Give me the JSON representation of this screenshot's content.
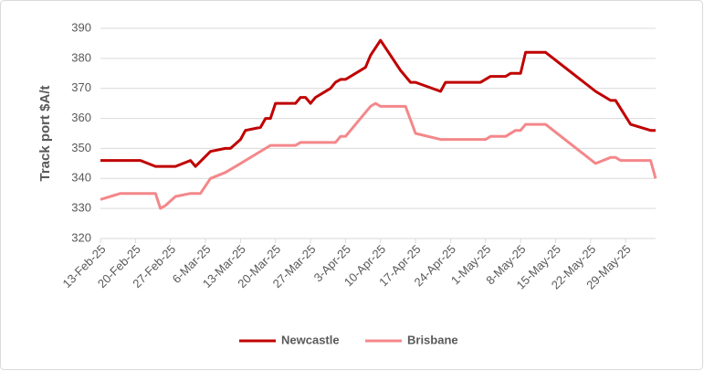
{
  "chart_data": {
    "type": "line",
    "y_label": "Track port $A/t",
    "ylim": [
      320,
      390
    ],
    "yticks": [
      320,
      330,
      340,
      350,
      360,
      370,
      380,
      390
    ],
    "xlim": [
      "13-Feb-25",
      "4-Jun-25"
    ],
    "xticks": [
      "13-Feb-25",
      "20-Feb-25",
      "27-Feb-25",
      "6-Mar-25",
      "13-Mar-25",
      "20-Mar-25",
      "27-Mar-25",
      "3-Apr-25",
      "10-Apr-25",
      "17-Apr-25",
      "24-Apr-25",
      "1-May-25",
      "8-May-25",
      "15-May-25",
      "22-May-25",
      "29-May-25"
    ],
    "grid": true,
    "legend": "bottom",
    "series": [
      {
        "name": "Newcastle",
        "color": "#c00000",
        "x": [
          "13-Feb-25",
          "21-Feb-25",
          "24-Feb-25",
          "28-Feb-25",
          "3-Mar-25",
          "4-Mar-25",
          "7-Mar-25",
          "10-Mar-25",
          "11-Mar-25",
          "13-Mar-25",
          "14-Mar-25",
          "17-Mar-25",
          "18-Mar-25",
          "19-Mar-25",
          "20-Mar-25",
          "24-Mar-25",
          "25-Mar-25",
          "26-Mar-25",
          "27-Mar-25",
          "28-Mar-25",
          "31-Mar-25",
          "1-Apr-25",
          "2-Apr-25",
          "3-Apr-25",
          "7-Apr-25",
          "8-Apr-25",
          "10-Apr-25",
          "14-Apr-25",
          "16-Apr-25",
          "17-Apr-25",
          "22-Apr-25",
          "23-Apr-25",
          "30-Apr-25",
          "2-May-25",
          "5-May-25",
          "6-May-25",
          "8-May-25",
          "9-May-25",
          "13-May-25",
          "23-May-25",
          "26-May-25",
          "27-May-25",
          "30-May-25",
          "3-Jun-25",
          "4-Jun-25"
        ],
        "values": [
          346,
          346,
          344,
          344,
          346,
          344,
          349,
          350,
          350,
          353,
          356,
          357,
          360,
          360,
          365,
          365,
          367,
          367,
          365,
          367,
          370,
          372,
          373,
          373,
          377,
          381,
          386,
          376,
          372,
          372,
          369,
          372,
          372,
          374,
          374,
          375,
          375,
          382,
          382,
          369,
          366,
          366,
          358,
          356,
          356
        ]
      },
      {
        "name": "Brisbane",
        "color": "#f4878a",
        "x": [
          "13-Feb-25",
          "17-Feb-25",
          "24-Feb-25",
          "25-Feb-25",
          "26-Feb-25",
          "28-Feb-25",
          "3-Mar-25",
          "5-Mar-25",
          "7-Mar-25",
          "10-Mar-25",
          "13-Mar-25",
          "14-Mar-25",
          "18-Mar-25",
          "19-Mar-25",
          "24-Mar-25",
          "25-Mar-25",
          "1-Apr-25",
          "2-Apr-25",
          "3-Apr-25",
          "8-Apr-25",
          "9-Apr-25",
          "10-Apr-25",
          "15-Apr-25",
          "17-Apr-25",
          "22-Apr-25",
          "1-May-25",
          "2-May-25",
          "5-May-25",
          "7-May-25",
          "8-May-25",
          "9-May-25",
          "13-May-25",
          "23-May-25",
          "26-May-25",
          "27-May-25",
          "28-May-25",
          "3-Jun-25",
          "4-Jun-25"
        ],
        "values": [
          333,
          335,
          335,
          330,
          331,
          334,
          335,
          335,
          340,
          342,
          345,
          346,
          350,
          351,
          351,
          352,
          352,
          354,
          354,
          364,
          365,
          364,
          364,
          355,
          353,
          353,
          354,
          354,
          356,
          356,
          358,
          358,
          345,
          347,
          347,
          346,
          346,
          340
        ]
      }
    ]
  }
}
